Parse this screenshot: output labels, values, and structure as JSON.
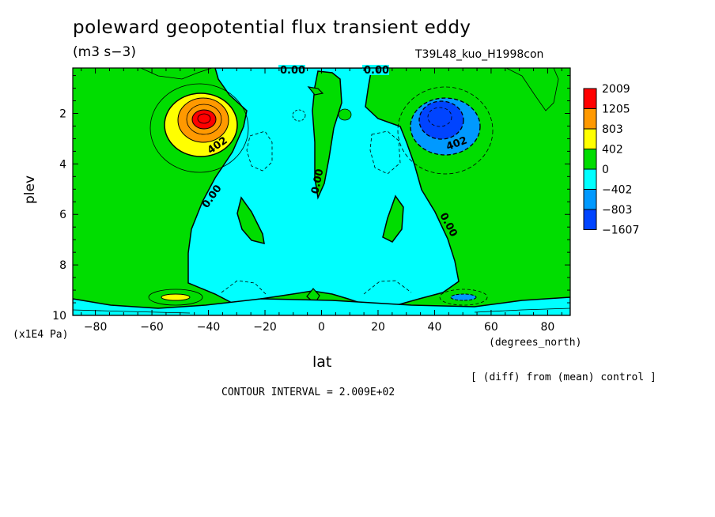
{
  "chart_data": {
    "type": "heatmap",
    "title": "poleward geopotential flux transient eddy",
    "units": "(m3 s−3)",
    "experiment": "T39L48_kuo_H1998con",
    "xlabel": "lat",
    "x_unit": "(degrees_north)",
    "ylabel": "plev",
    "y_unit": "(x1E4 Pa)",
    "xlim": [
      -88,
      88
    ],
    "ylim": [
      10,
      0.2
    ],
    "x_ticks": [
      "−80",
      "−60",
      "−40",
      "−20",
      "0",
      "20",
      "40",
      "60",
      "80"
    ],
    "x_tick_values": [
      -80,
      -60,
      -40,
      -20,
      0,
      20,
      40,
      60,
      80
    ],
    "y_ticks": [
      "2",
      "4",
      "6",
      "8",
      "10"
    ],
    "y_tick_values": [
      2,
      4,
      6,
      8,
      10
    ],
    "contour_labels": [
      "0.00",
      "0.00",
      "402",
      "0.00",
      "0.00",
      "402",
      "0.00"
    ],
    "colorbar": {
      "levels": [
        "2009",
        "1205",
        "803",
        "402",
        "0",
        "−402",
        "−803",
        "−1607"
      ],
      "colors": [
        "#ff0000",
        "#ff9900",
        "#ffff00",
        "#00dd00",
        "#00ffff",
        "#0099ff",
        "#0044ff"
      ]
    },
    "features": [
      {
        "name": "positive maximum",
        "lat": -42,
        "plev": 2.1
      },
      {
        "name": "negative minimum",
        "lat": 42,
        "plev": 2.2
      }
    ],
    "note": "[ (diff) from (mean) control ]",
    "contour_interval": "CONTOUR INTERVAL = 2.009E+02"
  },
  "colors": {
    "green": "#00dd00",
    "cyan": "#00ffff",
    "yellow": "#ffff00",
    "orange": "#ff9900",
    "red": "#ff0000",
    "blue1": "#0099ff",
    "blue2": "#0044ff"
  }
}
